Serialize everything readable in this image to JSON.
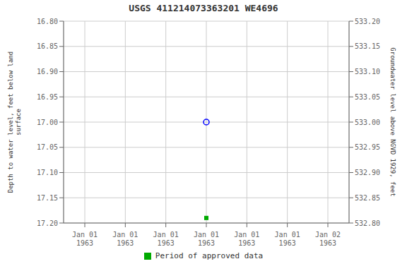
{
  "chart_data": {
    "type": "scatter",
    "title": "USGS 411214073363201 WE4696",
    "ylabel": "Depth to water level, feet below land\nsurface",
    "y2label": "Groundwater level above NGVD 1929, feet",
    "categories": [
      "Jan 01\n1963",
      "Jan 01\n1963",
      "Jan 01\n1963",
      "Jan 01\n1963",
      "Jan 01\n1963",
      "Jan 01\n1963",
      "Jan 02\n1963"
    ],
    "series": [
      {
        "color": "blue",
        "marker": "open_circle",
        "values": [
          null,
          null,
          null,
          17.0,
          null,
          null,
          null
        ]
      },
      {
        "name": "Period of approved data",
        "color": "#00aa00",
        "marker": "square",
        "values": [
          null,
          null,
          null,
          17.19,
          null,
          null,
          null
        ]
      }
    ],
    "ylim": [
      17.2,
      16.8
    ],
    "yticks": [
      {
        "value": 16.8,
        "label": "16.80"
      },
      {
        "value": 16.85,
        "label": "16.85"
      },
      {
        "value": 16.9,
        "label": "16.90"
      },
      {
        "value": 16.95,
        "label": "16.95"
      },
      {
        "value": 17.0,
        "label": "17.00"
      },
      {
        "value": 17.05,
        "label": "17.05"
      },
      {
        "value": 17.1,
        "label": "17.10"
      },
      {
        "value": 17.15,
        "label": "17.15"
      },
      {
        "value": 17.2,
        "label": "17.20"
      }
    ],
    "y2lim": [
      532.8,
      533.2
    ],
    "y2ticks": [
      {
        "value": 533.2,
        "label": "533.20"
      },
      {
        "value": 533.15,
        "label": "533.15"
      },
      {
        "value": 533.1,
        "label": "533.10"
      },
      {
        "value": 533.05,
        "label": "533.05"
      },
      {
        "value": 533.0,
        "label": "533.00"
      },
      {
        "value": 532.95,
        "label": "532.95"
      },
      {
        "value": 532.9,
        "label": "532.90"
      },
      {
        "value": 532.85,
        "label": "532.85"
      },
      {
        "value": 532.8,
        "label": "532.80"
      }
    ],
    "grid": true,
    "legend": "bottom"
  }
}
